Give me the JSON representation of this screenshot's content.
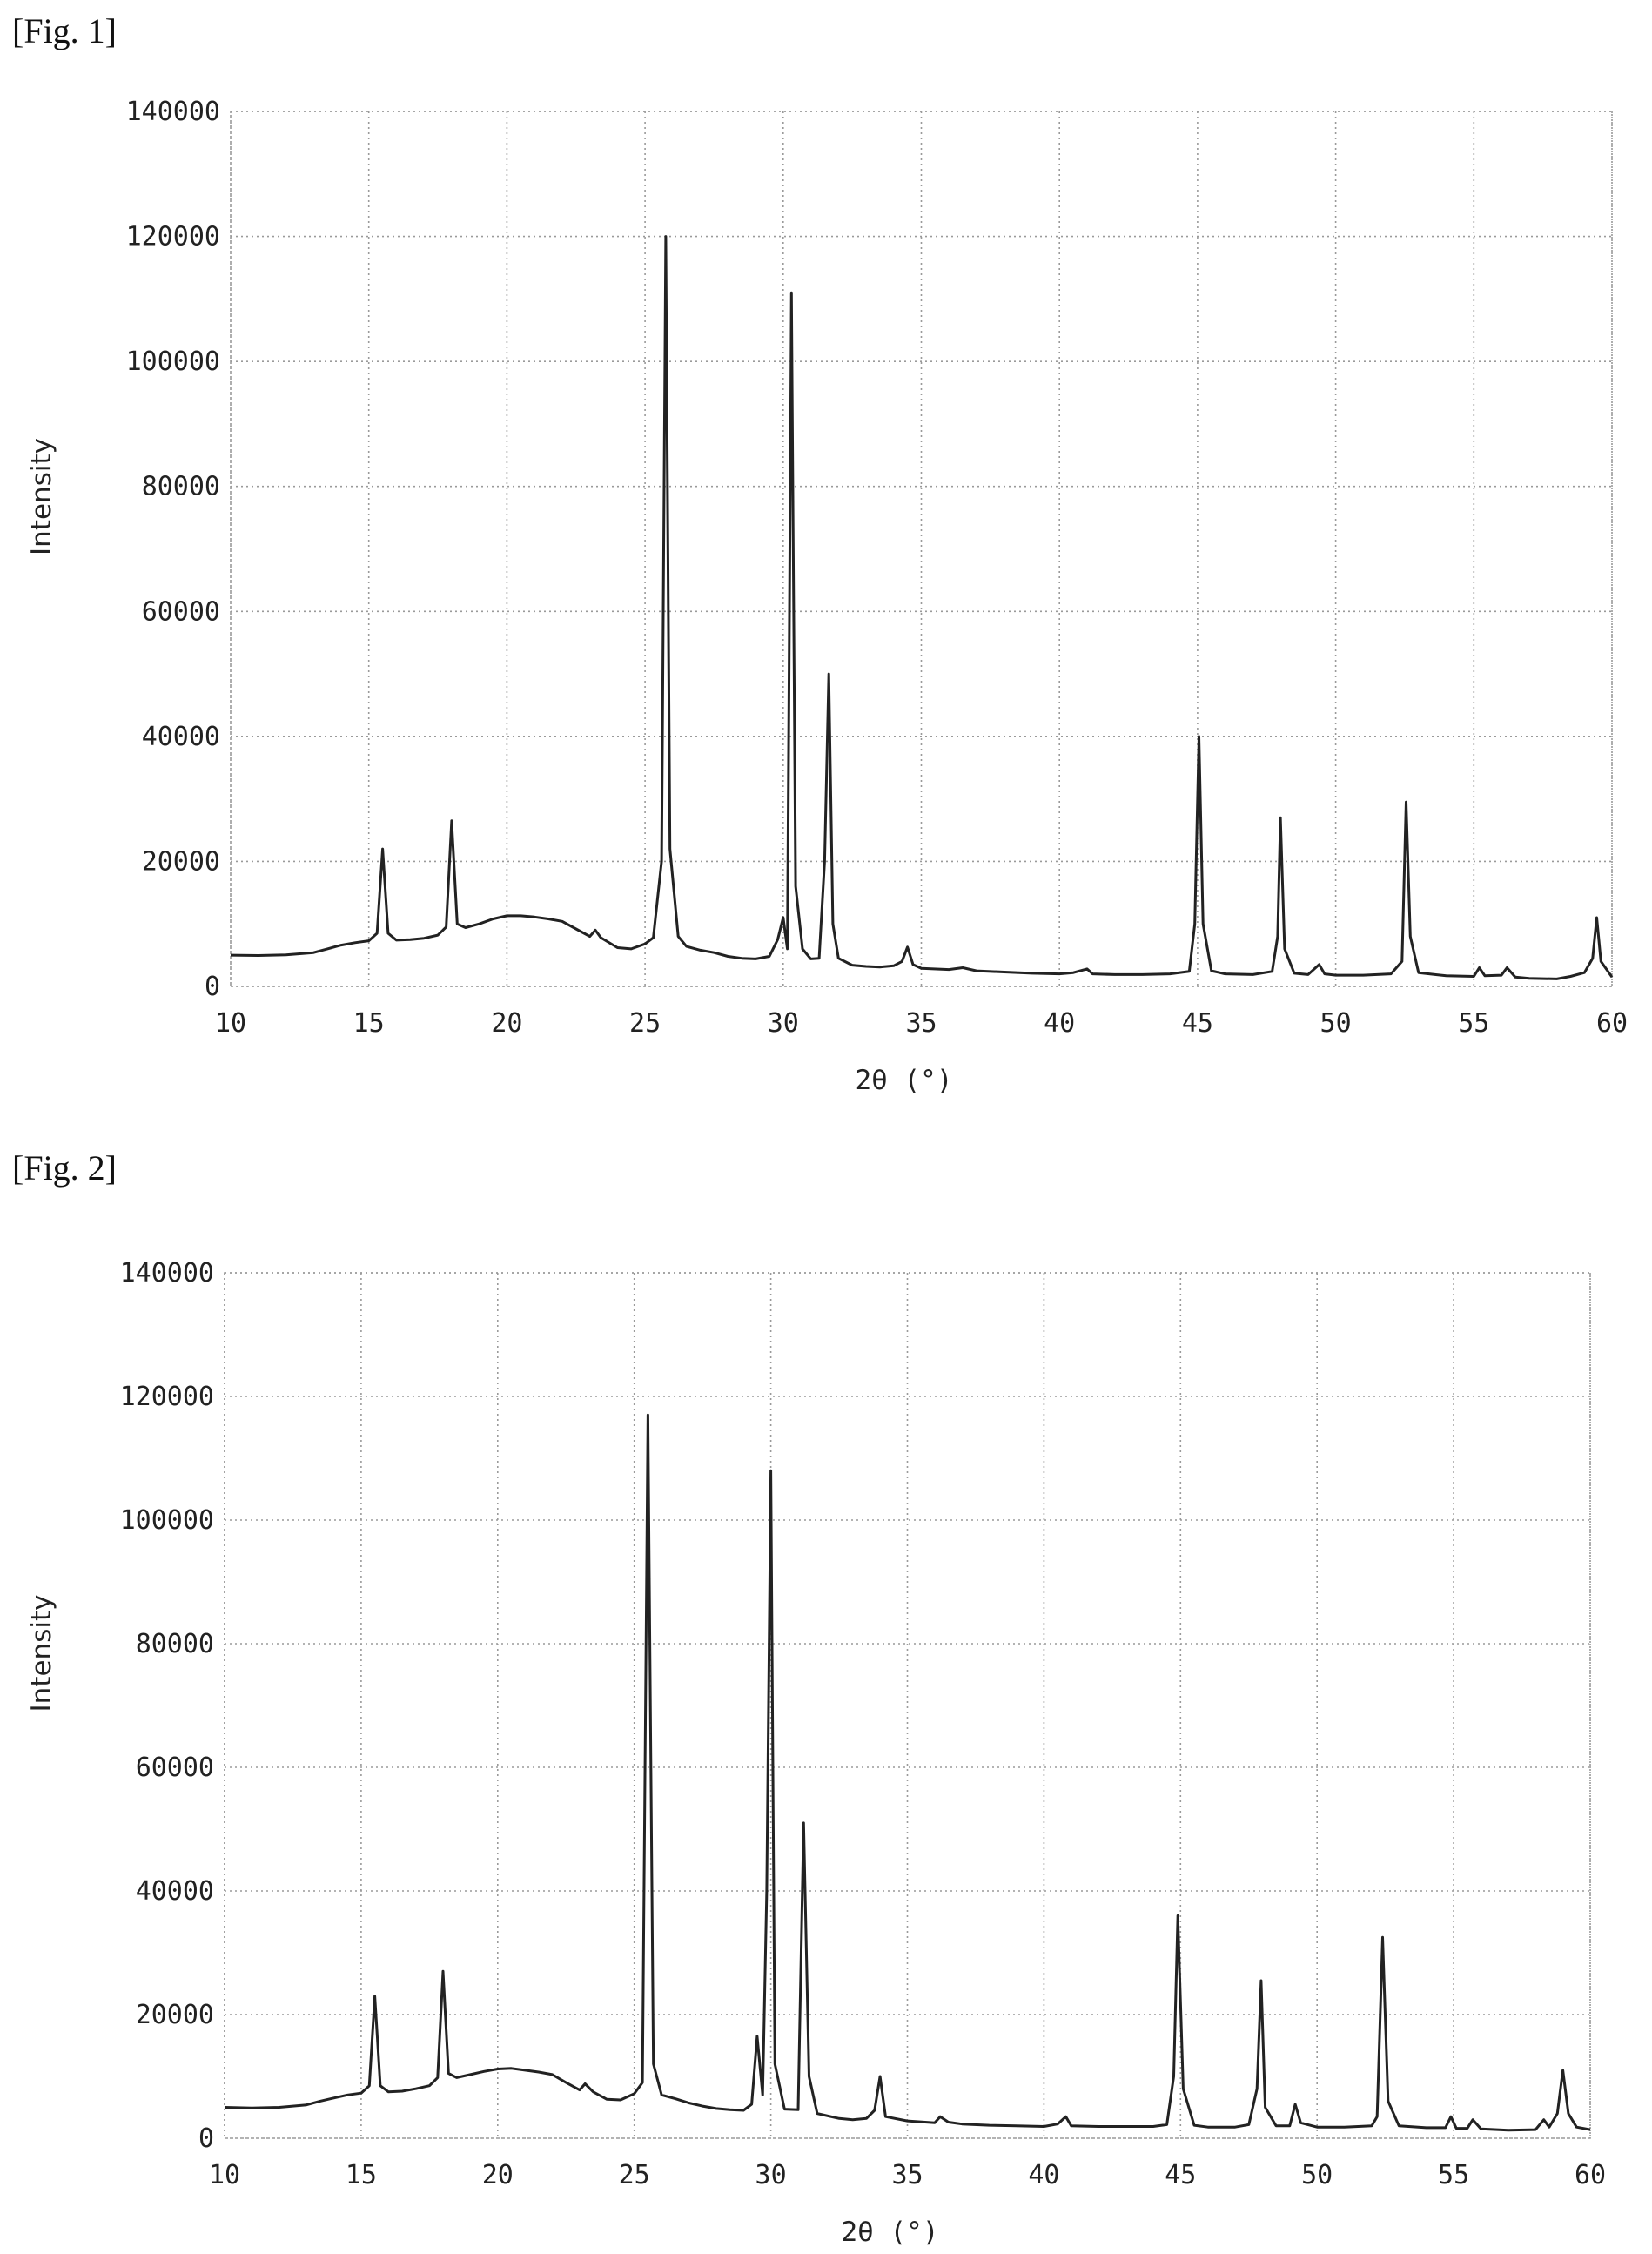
{
  "figures": [
    {
      "label": "[Fig. 1]"
    },
    {
      "label": "[Fig. 2]"
    }
  ],
  "chart_data": [
    {
      "type": "line",
      "title": "",
      "xlabel": "2θ (°)",
      "ylabel": "Intensity",
      "xlim": [
        10,
        60
      ],
      "ylim": [
        0,
        140000
      ],
      "xticks": [
        "10",
        "15",
        "20",
        "25",
        "30",
        "35",
        "40",
        "45",
        "50",
        "55",
        "60"
      ],
      "yticks": [
        "0",
        "20000",
        "40000",
        "60000",
        "80000",
        "100000",
        "120000",
        "140000"
      ],
      "grid": true,
      "series": [
        {
          "color": "#222222",
          "points": [
            [
              10,
              5000
            ],
            [
              11,
              4950
            ],
            [
              12,
              5050
            ],
            [
              13,
              5400
            ],
            [
              13.5,
              6000
            ],
            [
              14,
              6600
            ],
            [
              14.5,
              7000
            ],
            [
              15,
              7300
            ],
            [
              15.3,
              8500
            ],
            [
              15.5,
              22000
            ],
            [
              15.7,
              8500
            ],
            [
              16,
              7400
            ],
            [
              16.5,
              7500
            ],
            [
              17,
              7700
            ],
            [
              17.5,
              8200
            ],
            [
              17.8,
              9500
            ],
            [
              18,
              26500
            ],
            [
              18.2,
              10000
            ],
            [
              18.5,
              9400
            ],
            [
              19,
              10000
            ],
            [
              19.5,
              10800
            ],
            [
              20,
              11300
            ],
            [
              20.5,
              11300
            ],
            [
              21,
              11100
            ],
            [
              21.5,
              10800
            ],
            [
              22,
              10400
            ],
            [
              22.5,
              9200
            ],
            [
              23,
              8000
            ],
            [
              23.2,
              9000
            ],
            [
              23.4,
              7800
            ],
            [
              24,
              6200
            ],
            [
              24.5,
              6000
            ],
            [
              25,
              6800
            ],
            [
              25.3,
              7800
            ],
            [
              25.6,
              20000
            ],
            [
              25.75,
              120000
            ],
            [
              25.9,
              22000
            ],
            [
              26.2,
              8000
            ],
            [
              26.5,
              6400
            ],
            [
              27,
              5800
            ],
            [
              27.5,
              5400
            ],
            [
              28,
              4800
            ],
            [
              28.5,
              4500
            ],
            [
              29,
              4400
            ],
            [
              29.5,
              4800
            ],
            [
              29.8,
              7500
            ],
            [
              30,
              11000
            ],
            [
              30.15,
              6000
            ],
            [
              30.3,
              111000
            ],
            [
              30.45,
              16000
            ],
            [
              30.7,
              6000
            ],
            [
              31,
              4400
            ],
            [
              31.3,
              4500
            ],
            [
              31.5,
              20000
            ],
            [
              31.65,
              50000
            ],
            [
              31.8,
              10000
            ],
            [
              32,
              4500
            ],
            [
              32.5,
              3400
            ],
            [
              33,
              3200
            ],
            [
              33.5,
              3100
            ],
            [
              34,
              3300
            ],
            [
              34.3,
              4000
            ],
            [
              34.5,
              6300
            ],
            [
              34.7,
              3500
            ],
            [
              35,
              2900
            ],
            [
              36,
              2700
            ],
            [
              36.5,
              3000
            ],
            [
              37,
              2500
            ],
            [
              38,
              2300
            ],
            [
              39,
              2100
            ],
            [
              40,
              2000
            ],
            [
              40.5,
              2200
            ],
            [
              41,
              2800
            ],
            [
              41.2,
              2000
            ],
            [
              42,
              1900
            ],
            [
              43,
              1900
            ],
            [
              44,
              2000
            ],
            [
              44.7,
              2400
            ],
            [
              44.9,
              10000
            ],
            [
              45.05,
              40000
            ],
            [
              45.2,
              10000
            ],
            [
              45.5,
              2500
            ],
            [
              46,
              2000
            ],
            [
              47,
              1900
            ],
            [
              47.7,
              2400
            ],
            [
              47.9,
              8000
            ],
            [
              48,
              27000
            ],
            [
              48.15,
              6000
            ],
            [
              48.5,
              2100
            ],
            [
              49,
              1900
            ],
            [
              49.4,
              3500
            ],
            [
              49.6,
              2000
            ],
            [
              50,
              1800
            ],
            [
              51,
              1800
            ],
            [
              52,
              2000
            ],
            [
              52.4,
              4000
            ],
            [
              52.55,
              29500
            ],
            [
              52.7,
              8000
            ],
            [
              53,
              2200
            ],
            [
              54,
              1700
            ],
            [
              55,
              1600
            ],
            [
              55.2,
              3000
            ],
            [
              55.4,
              1700
            ],
            [
              56,
              1800
            ],
            [
              56.2,
              3000
            ],
            [
              56.5,
              1500
            ],
            [
              57,
              1300
            ],
            [
              58,
              1200
            ],
            [
              58.5,
              1600
            ],
            [
              59,
              2200
            ],
            [
              59.3,
              4500
            ],
            [
              59.45,
              11000
            ],
            [
              59.6,
              4000
            ],
            [
              60,
              1500
            ]
          ]
        }
      ]
    },
    {
      "type": "line",
      "title": "",
      "xlabel": "2θ (°)",
      "ylabel": "Intensity",
      "xlim": [
        10,
        60
      ],
      "ylim": [
        0,
        140000
      ],
      "xticks": [
        "10",
        "15",
        "20",
        "25",
        "30",
        "35",
        "40",
        "45",
        "50",
        "55",
        "60"
      ],
      "yticks": [
        "0",
        "20000",
        "40000",
        "60000",
        "80000",
        "100000",
        "120000",
        "140000"
      ],
      "grid": true,
      "series": [
        {
          "color": "#222222",
          "points": [
            [
              10,
              5000
            ],
            [
              11,
              4900
            ],
            [
              12,
              5000
            ],
            [
              13,
              5400
            ],
            [
              13.5,
              6000
            ],
            [
              14,
              6500
            ],
            [
              14.5,
              7000
            ],
            [
              15,
              7300
            ],
            [
              15.3,
              8500
            ],
            [
              15.5,
              23000
            ],
            [
              15.7,
              8500
            ],
            [
              16,
              7500
            ],
            [
              16.5,
              7600
            ],
            [
              17,
              8000
            ],
            [
              17.5,
              8500
            ],
            [
              17.8,
              9800
            ],
            [
              18,
              27000
            ],
            [
              18.2,
              10500
            ],
            [
              18.5,
              9800
            ],
            [
              19,
              10300
            ],
            [
              19.5,
              10800
            ],
            [
              20,
              11200
            ],
            [
              20.5,
              11300
            ],
            [
              21,
              11000
            ],
            [
              21.5,
              10700
            ],
            [
              22,
              10300
            ],
            [
              22.5,
              9000
            ],
            [
              23,
              7800
            ],
            [
              23.2,
              8800
            ],
            [
              23.5,
              7500
            ],
            [
              24,
              6300
            ],
            [
              24.5,
              6200
            ],
            [
              25,
              7200
            ],
            [
              25.3,
              9000
            ],
            [
              25.5,
              117000
            ],
            [
              25.7,
              12000
            ],
            [
              26,
              7000
            ],
            [
              26.5,
              6400
            ],
            [
              27,
              5700
            ],
            [
              27.5,
              5200
            ],
            [
              28,
              4800
            ],
            [
              28.5,
              4600
            ],
            [
              29,
              4500
            ],
            [
              29.3,
              5500
            ],
            [
              29.5,
              16500
            ],
            [
              29.7,
              7000
            ],
            [
              29.85,
              40000
            ],
            [
              30,
              108000
            ],
            [
              30.15,
              12000
            ],
            [
              30.5,
              4700
            ],
            [
              31,
              4600
            ],
            [
              31.2,
              51000
            ],
            [
              31.4,
              10000
            ],
            [
              31.7,
              4000
            ],
            [
              32.5,
              3200
            ],
            [
              33,
              3000
            ],
            [
              33.5,
              3200
            ],
            [
              33.8,
              4500
            ],
            [
              34,
              10000
            ],
            [
              34.2,
              3500
            ],
            [
              35,
              2800
            ],
            [
              36,
              2500
            ],
            [
              36.2,
              3500
            ],
            [
              36.5,
              2600
            ],
            [
              37,
              2300
            ],
            [
              38,
              2100
            ],
            [
              39,
              2000
            ],
            [
              40,
              1900
            ],
            [
              40.5,
              2300
            ],
            [
              40.8,
              3500
            ],
            [
              41,
              2000
            ],
            [
              42,
              1900
            ],
            [
              43,
              1900
            ],
            [
              44,
              1900
            ],
            [
              44.5,
              2200
            ],
            [
              44.75,
              10000
            ],
            [
              44.9,
              36000
            ],
            [
              45.1,
              8000
            ],
            [
              45.5,
              2100
            ],
            [
              46,
              1800
            ],
            [
              47,
              1800
            ],
            [
              47.5,
              2200
            ],
            [
              47.8,
              8000
            ],
            [
              47.95,
              25500
            ],
            [
              48.1,
              5000
            ],
            [
              48.5,
              2000
            ],
            [
              49,
              2000
            ],
            [
              49.2,
              5500
            ],
            [
              49.4,
              2500
            ],
            [
              50,
              1800
            ],
            [
              51,
              1800
            ],
            [
              52,
              2000
            ],
            [
              52.2,
              3500
            ],
            [
              52.4,
              32500
            ],
            [
              52.6,
              6000
            ],
            [
              53,
              2000
            ],
            [
              54,
              1700
            ],
            [
              54.7,
              1700
            ],
            [
              54.9,
              3500
            ],
            [
              55.1,
              1600
            ],
            [
              55.5,
              1600
            ],
            [
              55.7,
              3000
            ],
            [
              56,
              1500
            ],
            [
              57,
              1300
            ],
            [
              58,
              1400
            ],
            [
              58.3,
              3000
            ],
            [
              58.5,
              1800
            ],
            [
              58.8,
              4000
            ],
            [
              59,
              11000
            ],
            [
              59.2,
              4000
            ],
            [
              59.5,
              1800
            ],
            [
              60,
              1400
            ]
          ]
        }
      ]
    }
  ]
}
